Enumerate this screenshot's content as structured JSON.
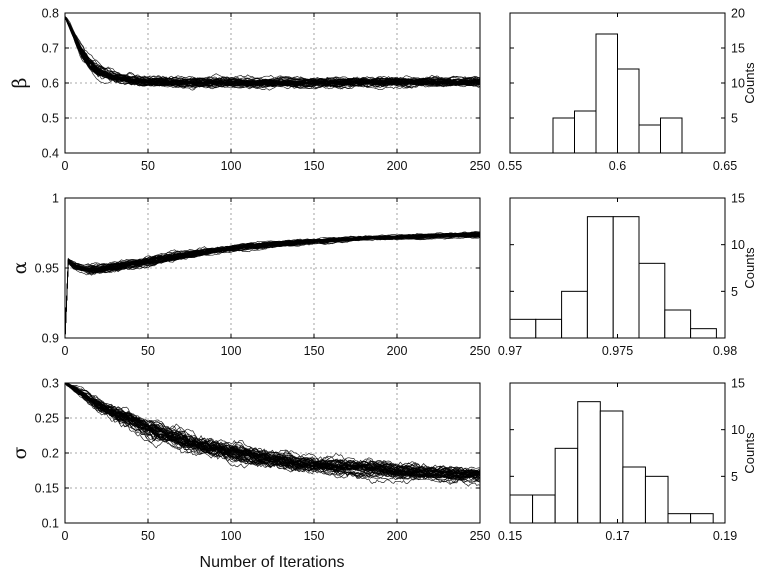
{
  "xlabel": "Number of Iterations",
  "counts_label": "Counts",
  "colors": {
    "trace": "#000000",
    "grid": "#8c8c8c",
    "bar_fill": "#ffffff",
    "axis": "#000000"
  },
  "chart_data": [
    {
      "id": "beta-trace",
      "type": "line",
      "ylabel": "β",
      "xlim": [
        0,
        250
      ],
      "ylim": [
        0.4,
        0.8
      ],
      "xticks": [
        0,
        50,
        100,
        150,
        200,
        250
      ],
      "xtick_labels": [
        "0",
        "50",
        "100",
        "150",
        "200",
        "250"
      ],
      "yticks": [
        0.4,
        0.5,
        0.6,
        0.7,
        0.8
      ],
      "ytick_labels": [
        "0.4",
        "0.5",
        "0.6",
        "0.7",
        "0.8"
      ],
      "grid": true,
      "n_series": 50,
      "x": [
        0,
        5,
        10,
        15,
        20,
        30,
        40,
        50,
        75,
        100,
        125,
        150,
        175,
        200,
        225,
        250
      ],
      "mean": [
        0.79,
        0.74,
        0.69,
        0.655,
        0.635,
        0.615,
        0.607,
        0.603,
        0.601,
        0.6,
        0.6,
        0.601,
        0.603,
        0.603,
        0.603,
        0.603
      ],
      "spread": [
        0.01,
        0.015,
        0.02,
        0.022,
        0.02,
        0.018,
        0.017,
        0.016,
        0.016,
        0.016,
        0.016,
        0.016,
        0.018,
        0.017,
        0.016,
        0.016
      ]
    },
    {
      "id": "beta-hist",
      "type": "bar",
      "ylabel": "Counts",
      "xlim": [
        0.55,
        0.65
      ],
      "ylim": [
        0,
        20
      ],
      "xticks": [
        0.55,
        0.6,
        0.65
      ],
      "xtick_labels": [
        "0.55",
        "0.6",
        "0.65"
      ],
      "yticks": [
        5,
        10,
        15,
        20
      ],
      "ytick_labels": [
        "5",
        "10",
        "15",
        "20"
      ],
      "bin_edges": [
        0.57,
        0.58,
        0.59,
        0.6,
        0.61,
        0.62,
        0.63
      ],
      "counts": [
        5,
        6,
        17,
        12,
        4,
        5
      ]
    },
    {
      "id": "alpha-trace",
      "type": "line",
      "ylabel": "α",
      "xlim": [
        0,
        250
      ],
      "ylim": [
        0.9,
        1.0
      ],
      "xticks": [
        0,
        50,
        100,
        150,
        200,
        250
      ],
      "xtick_labels": [
        "0",
        "50",
        "100",
        "150",
        "200",
        "250"
      ],
      "yticks": [
        0.9,
        0.95,
        1.0
      ],
      "ytick_labels": [
        "0.9",
        "0.95",
        "1"
      ],
      "grid": true,
      "n_series": 50,
      "x": [
        0,
        2,
        5,
        10,
        15,
        20,
        30,
        40,
        50,
        75,
        100,
        125,
        150,
        175,
        200,
        225,
        250
      ],
      "mean": [
        0.9,
        0.955,
        0.952,
        0.95,
        0.949,
        0.949,
        0.951,
        0.953,
        0.955,
        0.96,
        0.964,
        0.967,
        0.969,
        0.971,
        0.972,
        0.973,
        0.974
      ],
      "spread": [
        0.0,
        0.003,
        0.003,
        0.003,
        0.004,
        0.004,
        0.004,
        0.004,
        0.004,
        0.003,
        0.0028,
        0.0025,
        0.0022,
        0.002,
        0.002,
        0.002,
        0.002
      ]
    },
    {
      "id": "alpha-hist",
      "type": "bar",
      "ylabel": "Counts",
      "xlim": [
        0.97,
        0.98
      ],
      "ylim": [
        0,
        15
      ],
      "xticks": [
        0.97,
        0.975,
        0.98
      ],
      "xtick_labels": [
        "0.97",
        "0.975",
        "0.98"
      ],
      "yticks": [
        5,
        10,
        15
      ],
      "ytick_labels": [
        "5",
        "10",
        "15"
      ],
      "bin_edges": [
        0.97,
        0.9712,
        0.9724,
        0.9736,
        0.9748,
        0.976,
        0.9772,
        0.9784,
        0.9796
      ],
      "counts": [
        2,
        2,
        5,
        13,
        13,
        8,
        3,
        1,
        2
      ]
    },
    {
      "id": "sigma-trace",
      "type": "line",
      "ylabel": "σ",
      "xlim": [
        0,
        250
      ],
      "ylim": [
        0.1,
        0.3
      ],
      "xticks": [
        0,
        50,
        100,
        150,
        200,
        250
      ],
      "xtick_labels": [
        "0",
        "50",
        "100",
        "150",
        "200",
        "250"
      ],
      "yticks": [
        0.1,
        0.15,
        0.2,
        0.25,
        0.3
      ],
      "ytick_labels": [
        "0.1",
        "0.15",
        "0.2",
        "0.25",
        "0.3"
      ],
      "grid": true,
      "n_series": 50,
      "x": [
        0,
        10,
        20,
        30,
        50,
        75,
        100,
        125,
        150,
        175,
        200,
        225,
        250
      ],
      "mean": [
        0.3,
        0.285,
        0.268,
        0.255,
        0.235,
        0.215,
        0.2,
        0.19,
        0.183,
        0.178,
        0.174,
        0.171,
        0.169
      ],
      "spread": [
        0.003,
        0.008,
        0.012,
        0.015,
        0.016,
        0.017,
        0.017,
        0.016,
        0.015,
        0.014,
        0.013,
        0.012,
        0.012
      ]
    },
    {
      "id": "sigma-hist",
      "type": "bar",
      "ylabel": "Counts",
      "xlim": [
        0.15,
        0.19
      ],
      "ylim": [
        0,
        15
      ],
      "xticks": [
        0.15,
        0.17,
        0.19
      ],
      "xtick_labels": [
        "0.15",
        "0.17",
        "0.19"
      ],
      "yticks": [
        5,
        10,
        15
      ],
      "ytick_labels": [
        "5",
        "10",
        "15"
      ],
      "bin_edges": [
        0.15,
        0.1542,
        0.1584,
        0.1626,
        0.1668,
        0.171,
        0.1752,
        0.1794,
        0.1836,
        0.1878
      ],
      "counts": [
        3,
        3,
        8,
        13,
        12,
        6,
        5,
        1,
        1
      ]
    }
  ]
}
